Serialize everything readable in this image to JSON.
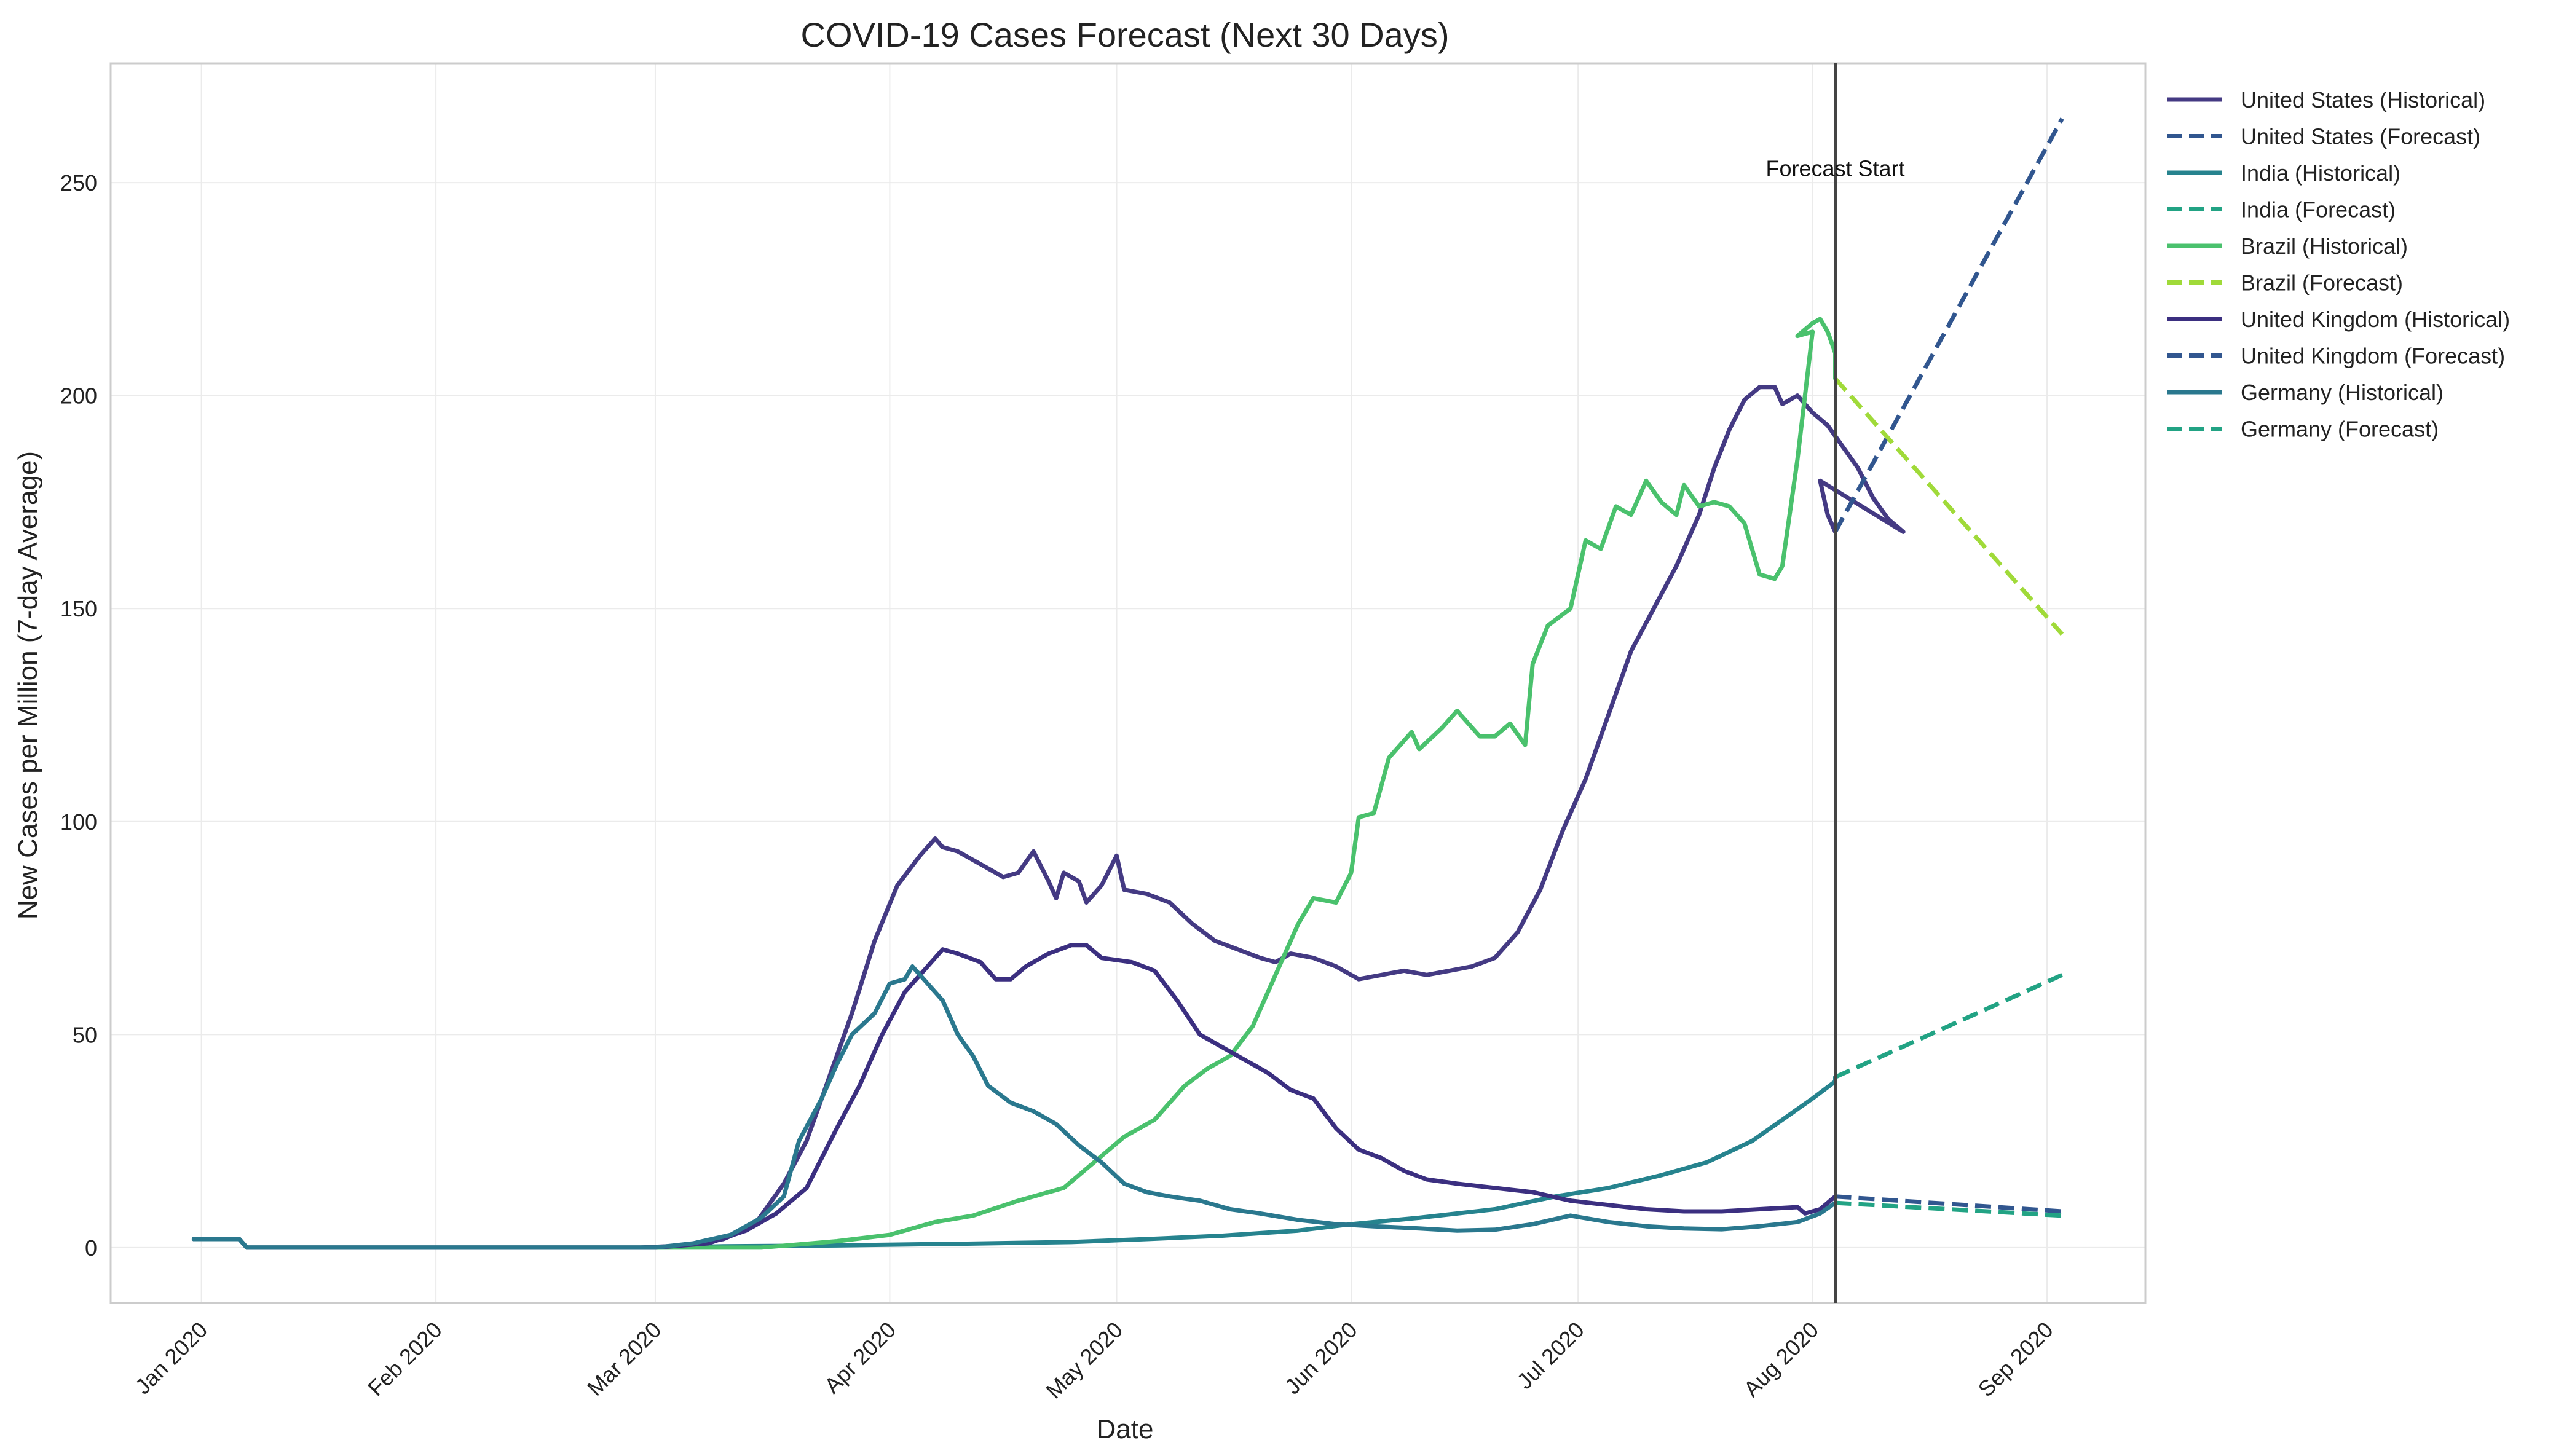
{
  "chart_data": {
    "type": "line",
    "title": "COVID-19 Cases Forecast (Next 30 Days)",
    "xlabel": "Date",
    "ylabel": "New Cases per Million (7-day Average)",
    "x_ticks": [
      "Jan 2020",
      "Feb 2020",
      "Mar 2020",
      "Apr 2020",
      "May 2020",
      "Jun 2020",
      "Jul 2020",
      "Aug 2020",
      "Sep 2020"
    ],
    "xlim": [
      "2019-12-20",
      "2020-09-14"
    ],
    "y_ticks": [
      0,
      50,
      100,
      150,
      200,
      250
    ],
    "ylim": [
      -13,
      278
    ],
    "grid": true,
    "legend_position": "outside-right",
    "forecast_start": {
      "date": "2020-08-04",
      "label": "Forecast Start"
    },
    "series": [
      {
        "name": "United States (Historical)",
        "color": "#443a83",
        "style": "solid",
        "points": [
          [
            "2019-12-31",
            2
          ],
          [
            "2020-01-06",
            2
          ],
          [
            "2020-01-07",
            0
          ],
          [
            "2020-02-28",
            0
          ],
          [
            "2020-03-05",
            0.5
          ],
          [
            "2020-03-10",
            2
          ],
          [
            "2020-03-14",
            5
          ],
          [
            "2020-03-18",
            15
          ],
          [
            "2020-03-21",
            25
          ],
          [
            "2020-03-24",
            40
          ],
          [
            "2020-03-27",
            55
          ],
          [
            "2020-03-30",
            72
          ],
          [
            "2020-04-02",
            85
          ],
          [
            "2020-04-05",
            92
          ],
          [
            "2020-04-07",
            96
          ],
          [
            "2020-04-08",
            94
          ],
          [
            "2020-04-10",
            93
          ],
          [
            "2020-04-13",
            90
          ],
          [
            "2020-04-16",
            87
          ],
          [
            "2020-04-18",
            88
          ],
          [
            "2020-04-20",
            93
          ],
          [
            "2020-04-22",
            86
          ],
          [
            "2020-04-23",
            82
          ],
          [
            "2020-04-24",
            88
          ],
          [
            "2020-04-26",
            86
          ],
          [
            "2020-04-27",
            81
          ],
          [
            "2020-04-29",
            85
          ],
          [
            "2020-05-01",
            92
          ],
          [
            "2020-05-02",
            84
          ],
          [
            "2020-05-05",
            83
          ],
          [
            "2020-05-08",
            81
          ],
          [
            "2020-05-11",
            76
          ],
          [
            "2020-05-14",
            72
          ],
          [
            "2020-05-17",
            70
          ],
          [
            "2020-05-20",
            68
          ],
          [
            "2020-05-22",
            67
          ],
          [
            "2020-05-24",
            69
          ],
          [
            "2020-05-27",
            68
          ],
          [
            "2020-05-30",
            66
          ],
          [
            "2020-06-02",
            63
          ],
          [
            "2020-06-05",
            64
          ],
          [
            "2020-06-08",
            65
          ],
          [
            "2020-06-11",
            64
          ],
          [
            "2020-06-14",
            65
          ],
          [
            "2020-06-17",
            66
          ],
          [
            "2020-06-20",
            68
          ],
          [
            "2020-06-23",
            74
          ],
          [
            "2020-06-26",
            84
          ],
          [
            "2020-06-29",
            98
          ],
          [
            "2020-07-02",
            110
          ],
          [
            "2020-07-05",
            125
          ],
          [
            "2020-07-08",
            140
          ],
          [
            "2020-07-11",
            150
          ],
          [
            "2020-07-14",
            160
          ],
          [
            "2020-07-17",
            172
          ],
          [
            "2020-07-19",
            183
          ],
          [
            "2020-07-21",
            192
          ],
          [
            "2020-07-23",
            199
          ],
          [
            "2020-07-25",
            202
          ],
          [
            "2020-07-27",
            202
          ],
          [
            "2020-07-28",
            198
          ],
          [
            "2020-07-30",
            200
          ],
          [
            "2020-08-01",
            196
          ],
          [
            "2020-08-03",
            193
          ],
          [
            "2020-08-05",
            188
          ],
          [
            "2020-08-07",
            183
          ],
          [
            "2020-08-09",
            176
          ],
          [
            "2020-08-11",
            171
          ],
          [
            "2020-08-13",
            168
          ],
          [
            "2020-08-02",
            180
          ],
          [
            "2020-08-03",
            172
          ],
          [
            "2020-08-04",
            168
          ]
        ]
      },
      {
        "name": "United States (Forecast)",
        "color": "#31568f",
        "style": "dashed",
        "points": [
          [
            "2020-08-04",
            168
          ],
          [
            "2020-09-03",
            265
          ]
        ]
      },
      {
        "name": "India (Historical)",
        "color": "#26838e",
        "style": "solid",
        "points": [
          [
            "2019-12-31",
            2
          ],
          [
            "2020-01-06",
            2
          ],
          [
            "2020-01-07",
            0
          ],
          [
            "2020-03-01",
            0
          ],
          [
            "2020-03-10",
            0.3
          ],
          [
            "2020-03-25",
            0.5
          ],
          [
            "2020-04-10",
            0.9
          ],
          [
            "2020-04-25",
            1.3
          ],
          [
            "2020-05-05",
            2
          ],
          [
            "2020-05-15",
            2.8
          ],
          [
            "2020-05-25",
            4
          ],
          [
            "2020-06-01",
            5.5
          ],
          [
            "2020-06-10",
            7
          ],
          [
            "2020-06-20",
            9
          ],
          [
            "2020-06-28",
            12
          ],
          [
            "2020-07-05",
            14
          ],
          [
            "2020-07-12",
            17
          ],
          [
            "2020-07-18",
            20
          ],
          [
            "2020-07-24",
            25
          ],
          [
            "2020-07-28",
            30
          ],
          [
            "2020-08-01",
            35
          ],
          [
            "2020-08-04",
            39
          ],
          [
            "2020-08-04",
            40
          ]
        ]
      },
      {
        "name": "India (Forecast)",
        "color": "#22a384",
        "style": "dashed",
        "points": [
          [
            "2020-08-04",
            40
          ],
          [
            "2020-09-03",
            64
          ]
        ]
      },
      {
        "name": "Brazil (Historical)",
        "color": "#4ac16d",
        "style": "solid",
        "points": [
          [
            "2019-12-31",
            2
          ],
          [
            "2020-01-06",
            2
          ],
          [
            "2020-01-07",
            0
          ],
          [
            "2020-03-15",
            0
          ],
          [
            "2020-03-25",
            1.5
          ],
          [
            "2020-04-01",
            3
          ],
          [
            "2020-04-07",
            6
          ],
          [
            "2020-04-12",
            7.5
          ],
          [
            "2020-04-18",
            11
          ],
          [
            "2020-04-24",
            14
          ],
          [
            "2020-04-28",
            20
          ],
          [
            "2020-05-02",
            26
          ],
          [
            "2020-05-06",
            30
          ],
          [
            "2020-05-10",
            38
          ],
          [
            "2020-05-13",
            42
          ],
          [
            "2020-05-16",
            45
          ],
          [
            "2020-05-19",
            52
          ],
          [
            "2020-05-22",
            64
          ],
          [
            "2020-05-25",
            76
          ],
          [
            "2020-05-27",
            82
          ],
          [
            "2020-05-30",
            81
          ],
          [
            "2020-06-01",
            88
          ],
          [
            "2020-06-02",
            101
          ],
          [
            "2020-06-04",
            102
          ],
          [
            "2020-06-06",
            115
          ],
          [
            "2020-06-09",
            121
          ],
          [
            "2020-06-10",
            117
          ],
          [
            "2020-06-13",
            122
          ],
          [
            "2020-06-15",
            126
          ],
          [
            "2020-06-18",
            120
          ],
          [
            "2020-06-20",
            120
          ],
          [
            "2020-06-22",
            123
          ],
          [
            "2020-06-24",
            118
          ],
          [
            "2020-06-25",
            137
          ],
          [
            "2020-06-27",
            146
          ],
          [
            "2020-06-30",
            150
          ],
          [
            "2020-07-02",
            166
          ],
          [
            "2020-07-04",
            164
          ],
          [
            "2020-07-06",
            174
          ],
          [
            "2020-07-08",
            172
          ],
          [
            "2020-07-10",
            180
          ],
          [
            "2020-07-12",
            175
          ],
          [
            "2020-07-14",
            172
          ],
          [
            "2020-07-15",
            179
          ],
          [
            "2020-07-17",
            174
          ],
          [
            "2020-07-19",
            175
          ],
          [
            "2020-07-21",
            174
          ],
          [
            "2020-07-23",
            170
          ],
          [
            "2020-07-25",
            158
          ],
          [
            "2020-07-27",
            157
          ],
          [
            "2020-07-28",
            160
          ],
          [
            "2020-07-30",
            185
          ],
          [
            "2020-08-01",
            215
          ],
          [
            "2020-07-30",
            214
          ],
          [
            "2020-08-01",
            217
          ],
          [
            "2020-08-02",
            218
          ],
          [
            "2020-08-03",
            215
          ],
          [
            "2020-08-04",
            210
          ],
          [
            "2020-08-04",
            204
          ]
        ]
      },
      {
        "name": "Brazil (Forecast)",
        "color": "#a0da39",
        "style": "dashed",
        "points": [
          [
            "2020-08-04",
            204
          ],
          [
            "2020-09-03",
            144
          ]
        ]
      },
      {
        "name": "United Kingdom (Historical)",
        "color": "#3b2f80",
        "style": "solid",
        "points": [
          [
            "2019-12-31",
            2
          ],
          [
            "2020-01-06",
            2
          ],
          [
            "2020-01-07",
            0
          ],
          [
            "2020-03-01",
            0
          ],
          [
            "2020-03-08",
            1
          ],
          [
            "2020-03-13",
            4
          ],
          [
            "2020-03-17",
            8
          ],
          [
            "2020-03-21",
            14
          ],
          [
            "2020-03-25",
            28
          ],
          [
            "2020-03-28",
            38
          ],
          [
            "2020-03-31",
            50
          ],
          [
            "2020-04-03",
            60
          ],
          [
            "2020-04-06",
            66
          ],
          [
            "2020-04-08",
            70
          ],
          [
            "2020-04-10",
            69
          ],
          [
            "2020-04-13",
            67
          ],
          [
            "2020-04-15",
            63
          ],
          [
            "2020-04-17",
            63
          ],
          [
            "2020-04-19",
            66
          ],
          [
            "2020-04-22",
            69
          ],
          [
            "2020-04-25",
            71
          ],
          [
            "2020-04-27",
            71
          ],
          [
            "2020-04-29",
            68
          ],
          [
            "2020-05-03",
            67
          ],
          [
            "2020-05-06",
            65
          ],
          [
            "2020-05-09",
            58
          ],
          [
            "2020-05-12",
            50
          ],
          [
            "2020-05-15",
            47
          ],
          [
            "2020-05-18",
            44
          ],
          [
            "2020-05-21",
            41
          ],
          [
            "2020-05-24",
            37
          ],
          [
            "2020-05-27",
            35
          ],
          [
            "2020-05-30",
            28
          ],
          [
            "2020-06-02",
            23
          ],
          [
            "2020-06-05",
            21
          ],
          [
            "2020-06-08",
            18
          ],
          [
            "2020-06-11",
            16
          ],
          [
            "2020-06-15",
            15
          ],
          [
            "2020-06-20",
            14
          ],
          [
            "2020-06-25",
            13
          ],
          [
            "2020-06-30",
            11
          ],
          [
            "2020-07-05",
            10
          ],
          [
            "2020-07-10",
            9
          ],
          [
            "2020-07-15",
            8.5
          ],
          [
            "2020-07-20",
            8.5
          ],
          [
            "2020-07-25",
            9
          ],
          [
            "2020-07-30",
            9.5
          ],
          [
            "2020-07-31",
            8
          ],
          [
            "2020-08-02",
            9
          ],
          [
            "2020-08-04",
            12
          ]
        ]
      },
      {
        "name": "United Kingdom (Forecast)",
        "color": "#31568f",
        "style": "dashed",
        "points": [
          [
            "2020-08-04",
            12
          ],
          [
            "2020-09-03",
            8.5
          ]
        ]
      },
      {
        "name": "Germany (Historical)",
        "color": "#2a788e",
        "style": "solid",
        "points": [
          [
            "2019-12-31",
            2
          ],
          [
            "2020-01-06",
            2
          ],
          [
            "2020-01-07",
            0
          ],
          [
            "2020-03-01",
            0
          ],
          [
            "2020-03-06",
            1
          ],
          [
            "2020-03-11",
            3
          ],
          [
            "2020-03-15",
            7
          ],
          [
            "2020-03-18",
            12
          ],
          [
            "2020-03-20",
            25
          ],
          [
            "2020-03-23",
            35
          ],
          [
            "2020-03-25",
            43
          ],
          [
            "2020-03-27",
            50
          ],
          [
            "2020-03-30",
            55
          ],
          [
            "2020-04-01",
            62
          ],
          [
            "2020-04-03",
            63
          ],
          [
            "2020-04-04",
            66
          ],
          [
            "2020-04-06",
            62
          ],
          [
            "2020-04-08",
            58
          ],
          [
            "2020-04-10",
            50
          ],
          [
            "2020-04-12",
            45
          ],
          [
            "2020-04-14",
            38
          ],
          [
            "2020-04-17",
            34
          ],
          [
            "2020-04-20",
            32
          ],
          [
            "2020-04-23",
            29
          ],
          [
            "2020-04-26",
            24
          ],
          [
            "2020-04-29",
            20
          ],
          [
            "2020-05-02",
            15
          ],
          [
            "2020-05-05",
            13
          ],
          [
            "2020-05-08",
            12
          ],
          [
            "2020-05-12",
            11
          ],
          [
            "2020-05-16",
            9
          ],
          [
            "2020-05-20",
            8
          ],
          [
            "2020-05-25",
            6.5
          ],
          [
            "2020-05-30",
            5.5
          ],
          [
            "2020-06-04",
            5
          ],
          [
            "2020-06-10",
            4.5
          ],
          [
            "2020-06-15",
            4
          ],
          [
            "2020-06-20",
            4.2
          ],
          [
            "2020-06-25",
            5.5
          ],
          [
            "2020-06-30",
            7.5
          ],
          [
            "2020-07-05",
            6
          ],
          [
            "2020-07-10",
            5
          ],
          [
            "2020-07-15",
            4.5
          ],
          [
            "2020-07-20",
            4.3
          ],
          [
            "2020-07-25",
            5
          ],
          [
            "2020-07-30",
            6
          ],
          [
            "2020-08-02",
            8
          ],
          [
            "2020-08-04",
            10.5
          ]
        ]
      },
      {
        "name": "Germany (Forecast)",
        "color": "#22a384",
        "style": "dashed",
        "points": [
          [
            "2020-08-04",
            10.5
          ],
          [
            "2020-09-03",
            7.5
          ]
        ]
      }
    ]
  }
}
